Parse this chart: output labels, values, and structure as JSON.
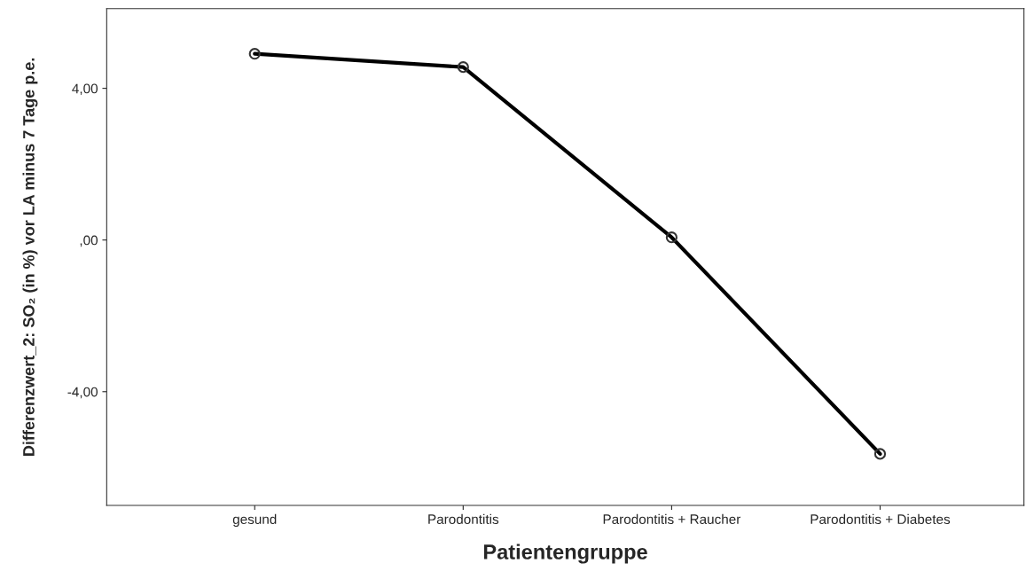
{
  "chart_data": {
    "type": "line",
    "categories": [
      "gesund",
      "Parodontitis",
      "Parodontitis + Raucher",
      "Parodontitis + Diabetes"
    ],
    "values": [
      4.91,
      4.56,
      0.07,
      -5.64
    ],
    "color": "#000000",
    "marker": "circle",
    "line_style": "solid",
    "xlabel": "Patientengruppe",
    "ylabel": "Differenzwert_2: SO₂ (in %) vor LA minus 7 Tage p.e.",
    "ylim": [
      -7.0,
      6.1
    ],
    "yticks": [
      {
        "value": 4,
        "label": "4,00"
      },
      {
        "value": 0,
        "label": ",00"
      },
      {
        "value": -4,
        "label": "-4,00"
      }
    ],
    "grid": false,
    "legend": false
  }
}
